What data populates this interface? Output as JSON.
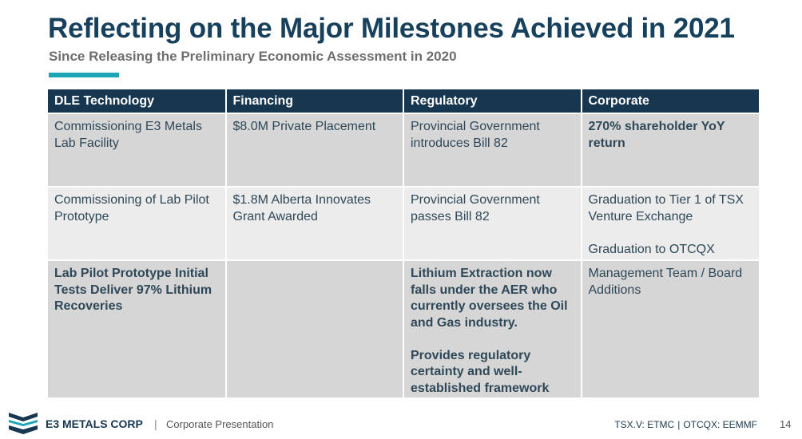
{
  "slide": {
    "title": "Reflecting on the Major Milestones Achieved in 2021",
    "subtitle": "Since Releasing the Preliminary Economic Assessment in 2020",
    "accent_color": "#1aa6b7",
    "header_color": "#17364f"
  },
  "table": {
    "headers": [
      "DLE Technology",
      "Financing",
      "Regulatory",
      "Corporate"
    ],
    "rows": [
      {
        "dle": "Commissioning E3 Metals Lab Facility",
        "financing": "$8.0M Private Placement",
        "regulatory": "Provincial Government introduces Bill 82",
        "corporate": "270% shareholder YoY return"
      },
      {
        "dle": "Commissioning of Lab Pilot Prototype",
        "financing": "$1.8M Alberta Innovates Grant Awarded",
        "regulatory": "Provincial Government passes Bill 82",
        "corporate_1": "Graduation to Tier 1 of TSX Venture Exchange",
        "corporate_2": "Graduation to OTCQX"
      },
      {
        "dle": "Lab Pilot Prototype Initial Tests Deliver 97% Lithium Recoveries",
        "financing": "",
        "regulatory_1": "Lithium Extraction now falls under the AER who currently oversees the Oil and Gas industry.",
        "regulatory_2": "Provides regulatory certainty and well-established framework",
        "corporate": "Management Team / Board Additions"
      }
    ]
  },
  "footer": {
    "logo_icon": "e3-logo-icon",
    "company": "E3 METALS CORP",
    "separator": "|",
    "presentation": "Corporate Presentation",
    "ticker_tsx": "TSX.V: ETMC",
    "ticker_sep": "|",
    "ticker_otc": "OTCQX: EEMMF",
    "page_number": "14"
  }
}
